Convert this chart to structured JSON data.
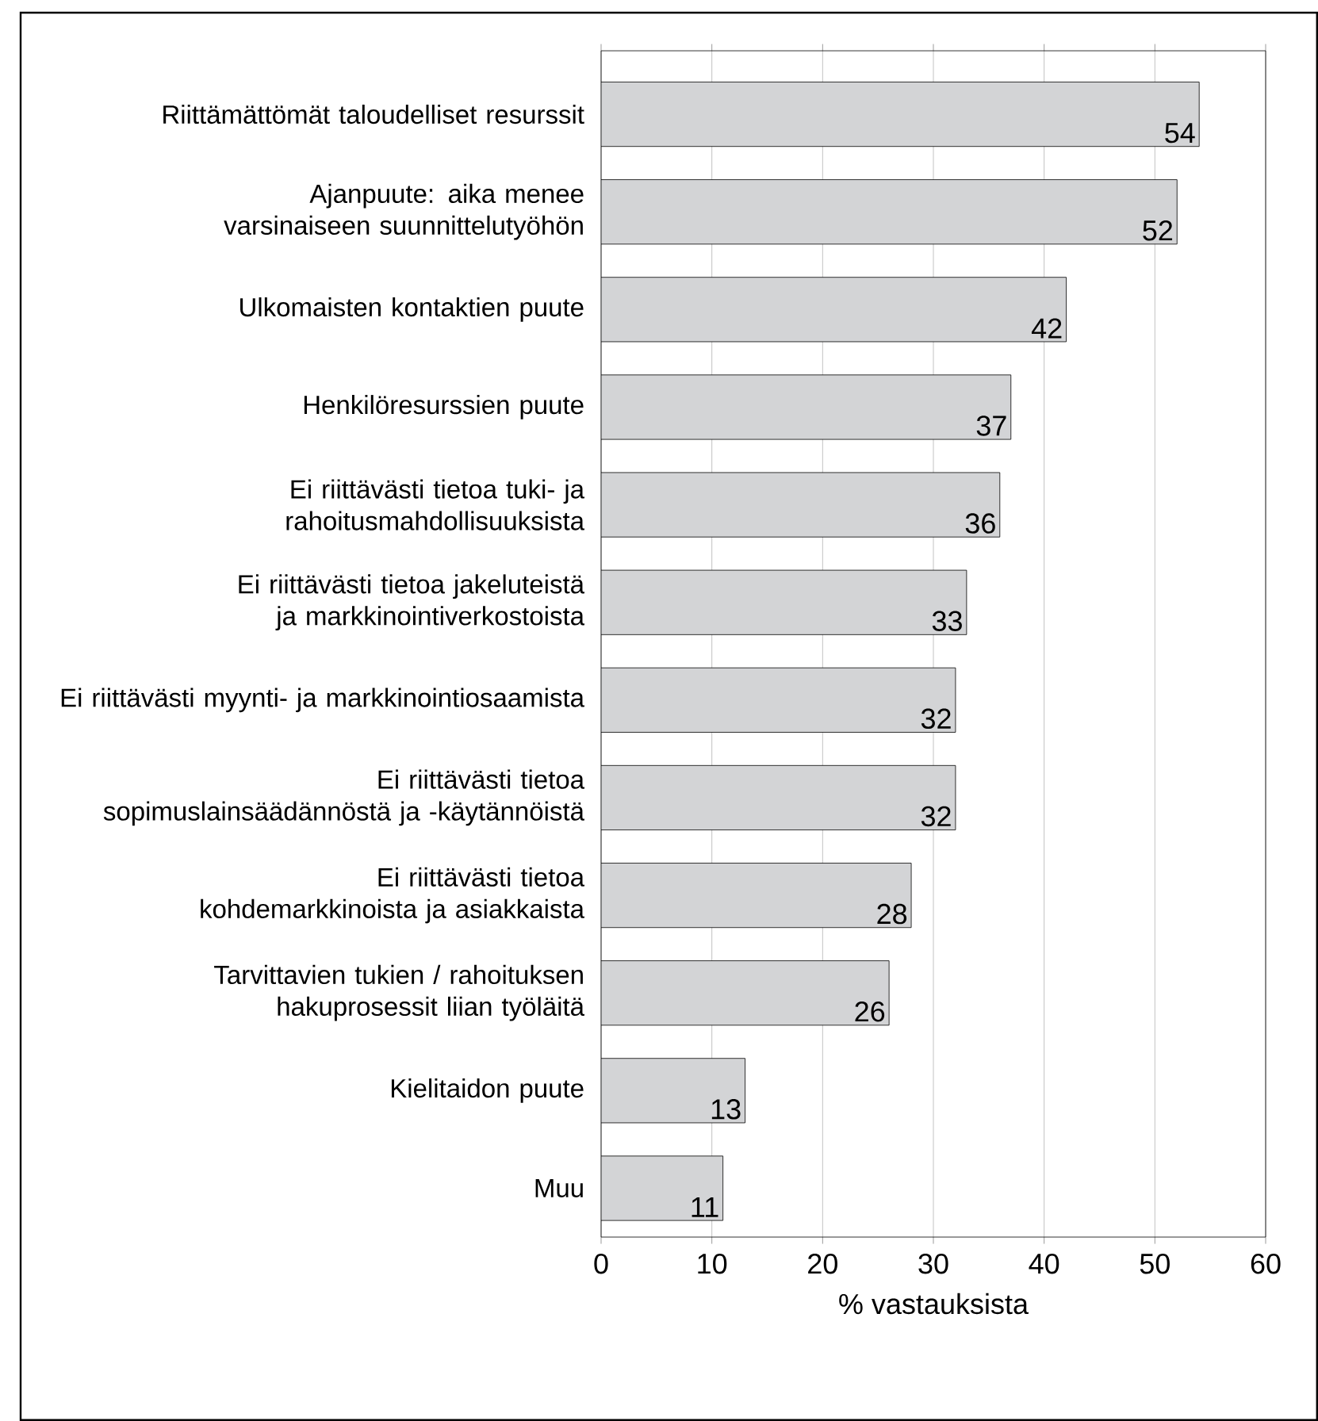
{
  "chart_data": {
    "type": "bar",
    "orientation": "horizontal",
    "xlabel": "% vastauksista",
    "categories": [
      "Riittämättömät taloudelliset resurssit",
      "Ajanpuute: aika menee varsinaiseen suunnittelutyöhön",
      "Ulkomaisten kontaktien puute",
      "Henkilöresurssien puute",
      "Ei riittävästi tietoa tuki- ja rahoitusmahdollisuuksista",
      "Ei riittävästi tietoa jakeluteistä ja markkinointiverkostoista",
      "Ei riittävästi myynti- ja markkinointiosaamista",
      "Ei riittävästi tietoa sopimuslainsäädännöstä ja -käytännöistä",
      "Ei riittävästi tietoa kohdemarkkinoista ja asiakkaista",
      "Tarvittavien tukien / rahoituksen hakuprosessit liian työläitä",
      "Kielitaidon puute",
      "Muu"
    ],
    "values": [
      54,
      52,
      42,
      37,
      36,
      33,
      32,
      32,
      28,
      26,
      13,
      11
    ],
    "color": "#d3d4d6",
    "xlim": [
      0,
      60
    ],
    "xticks": [
      0,
      10,
      20,
      30,
      40,
      50,
      60
    ],
    "grid": "x",
    "data_labels": true
  }
}
